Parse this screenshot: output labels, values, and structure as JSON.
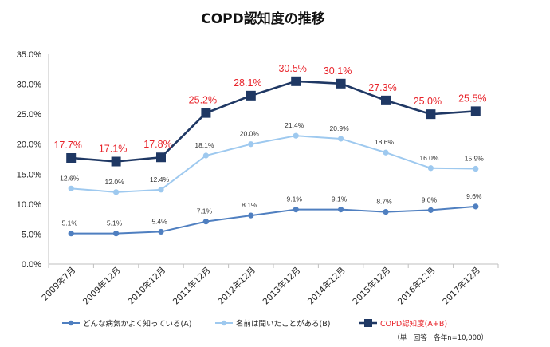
{
  "chart_data": {
    "type": "line",
    "title": "COPD認知度の推移",
    "categories": [
      "2009年7月",
      "2009年12月",
      "2010年12月",
      "2011年12月",
      "2012年12月",
      "2013年12月",
      "2014年12月",
      "2015年12月",
      "2016年12月",
      "2017年12月"
    ],
    "ylim": [
      0,
      35
    ],
    "yticks": [
      "0.0%",
      "5.0%",
      "10.0%",
      "15.0%",
      "20.0%",
      "25.0%",
      "30.0%",
      "35.0%"
    ],
    "grid": false,
    "legend_position": "bottom",
    "series": [
      {
        "name": "どんな病気かよく知っている(A)",
        "color": "#4f7fc0",
        "marker": "circle",
        "values": [
          5.1,
          5.1,
          5.4,
          7.1,
          8.1,
          9.1,
          9.1,
          8.7,
          9.0,
          9.6
        ],
        "labels": [
          "5.1%",
          "5.1%",
          "5.4%",
          "7.1%",
          "8.1%",
          "9.1%",
          "9.1%",
          "8.7%",
          "9.0%",
          "9.6%"
        ]
      },
      {
        "name": "名前は聞いたことがある(B)",
        "color": "#9ec9ef",
        "marker": "circle",
        "values": [
          12.6,
          12.0,
          12.4,
          18.1,
          20.0,
          21.4,
          20.9,
          18.6,
          16.0,
          15.9
        ],
        "labels": [
          "12.6%",
          "12.0%",
          "12.4%",
          "18.1%",
          "20.0%",
          "21.4%",
          "20.9%",
          "18.6%",
          "16.0%",
          "15.9%"
        ]
      },
      {
        "name": "COPD認知度(A+B)",
        "color": "#1f3864",
        "marker": "square",
        "values": [
          17.7,
          17.1,
          17.8,
          25.2,
          28.1,
          30.5,
          30.1,
          27.3,
          25.0,
          25.5
        ],
        "labels": [
          "17.7%",
          "17.1%",
          "17.8%",
          "25.2%",
          "28.1%",
          "30.5%",
          "30.1%",
          "27.3%",
          "25.0%",
          "25.5%"
        ]
      }
    ],
    "note": "（単一回答　各年n=10,000）"
  }
}
